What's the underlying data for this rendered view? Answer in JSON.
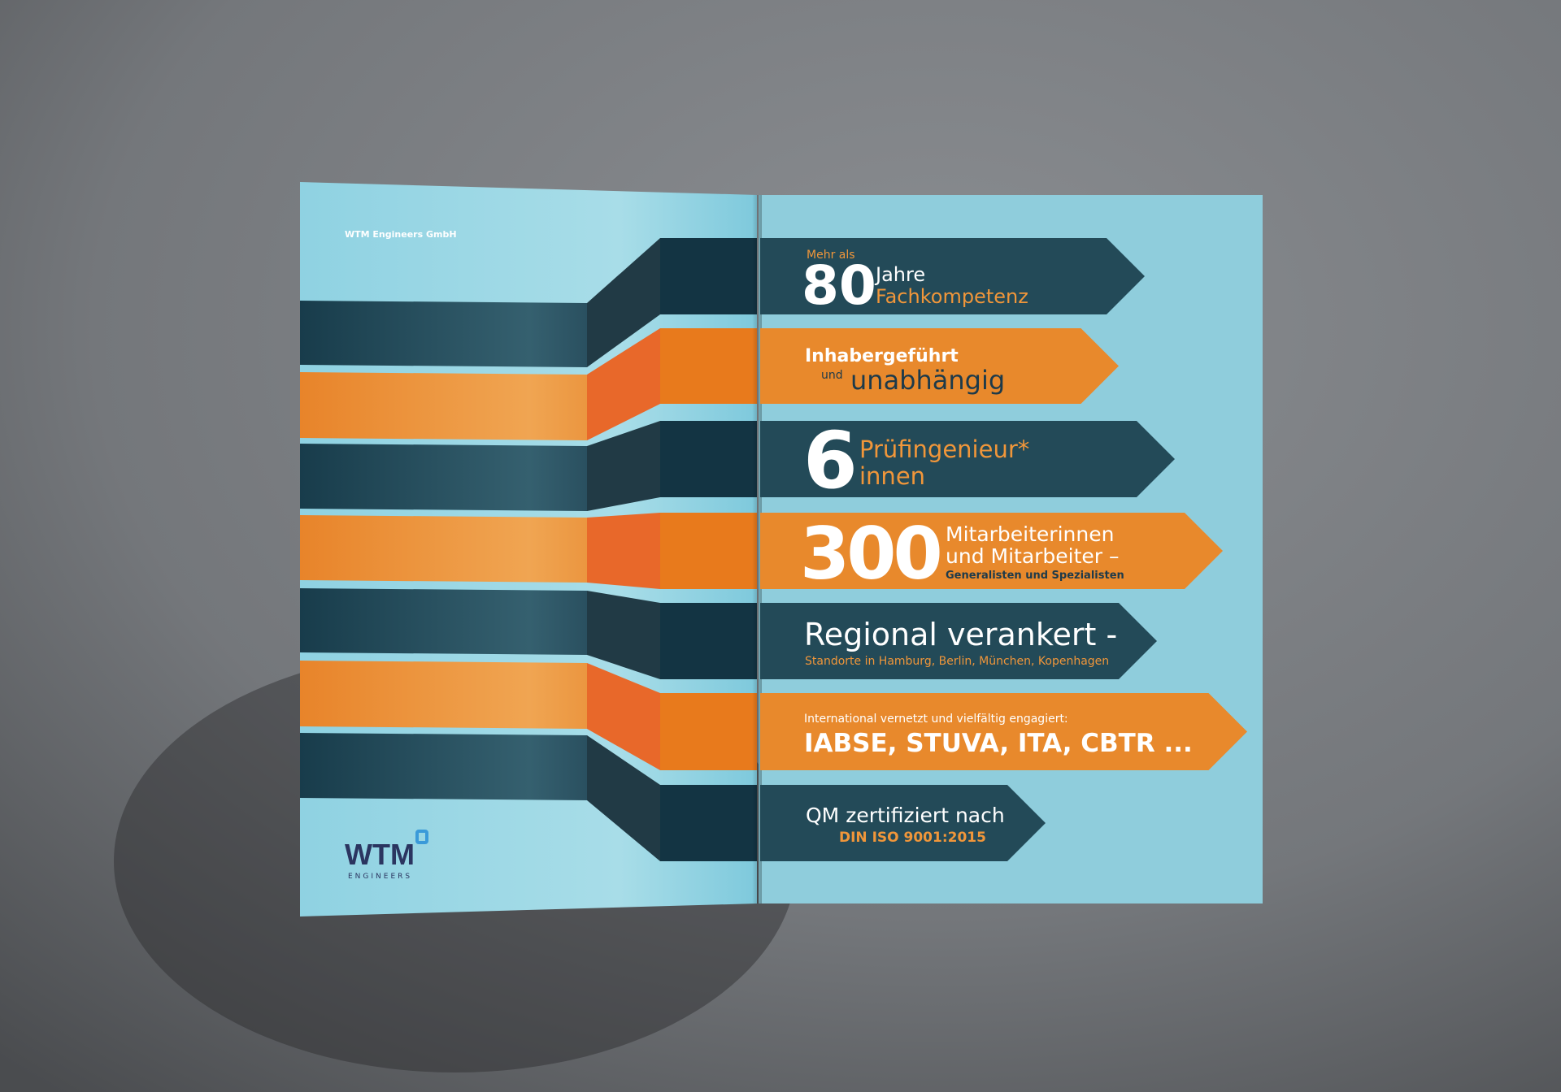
{
  "colors": {
    "background": "#7c7f83",
    "page_blue": "#8ecfde",
    "dark_teal": "#234a58",
    "orange": "#e8892c",
    "logo_navy": "#2b3560",
    "logo_accent": "#3a9ad9"
  },
  "left_page": {
    "company": "WTM Engineers GmbH",
    "logo": {
      "wordmark": "WTM",
      "sub": "ENGINEERS",
      "icon": "square-outline-icon"
    }
  },
  "right_page": {
    "b1": {
      "pre": "Mehr als",
      "num": "80",
      "l1": "Jahre",
      "l2": "Fachkompetenz"
    },
    "b2": {
      "l1": "Inhabergeführt",
      "small": "und",
      "l2": "unabhängig"
    },
    "b3": {
      "num": "6",
      "l1": "Prüfingenieur*",
      "l2": "innen"
    },
    "b4": {
      "num": "300",
      "l1": "Mitarbeiterinnen",
      "l2": "und Mitarbeiter –",
      "l3": "Generalisten und Spezialisten"
    },
    "b5": {
      "l1": "Regional verankert -",
      "l2": "Standorte in Hamburg, Berlin, München, Kopenhagen"
    },
    "b6": {
      "l1": "International vernetzt und vielfältig engagiert:",
      "l2": "IABSE, STUVA, ITA, CBTR ..."
    },
    "b7": {
      "l1": "QM zertifiziert nach",
      "l2": "DIN ISO 9001:2015"
    }
  }
}
